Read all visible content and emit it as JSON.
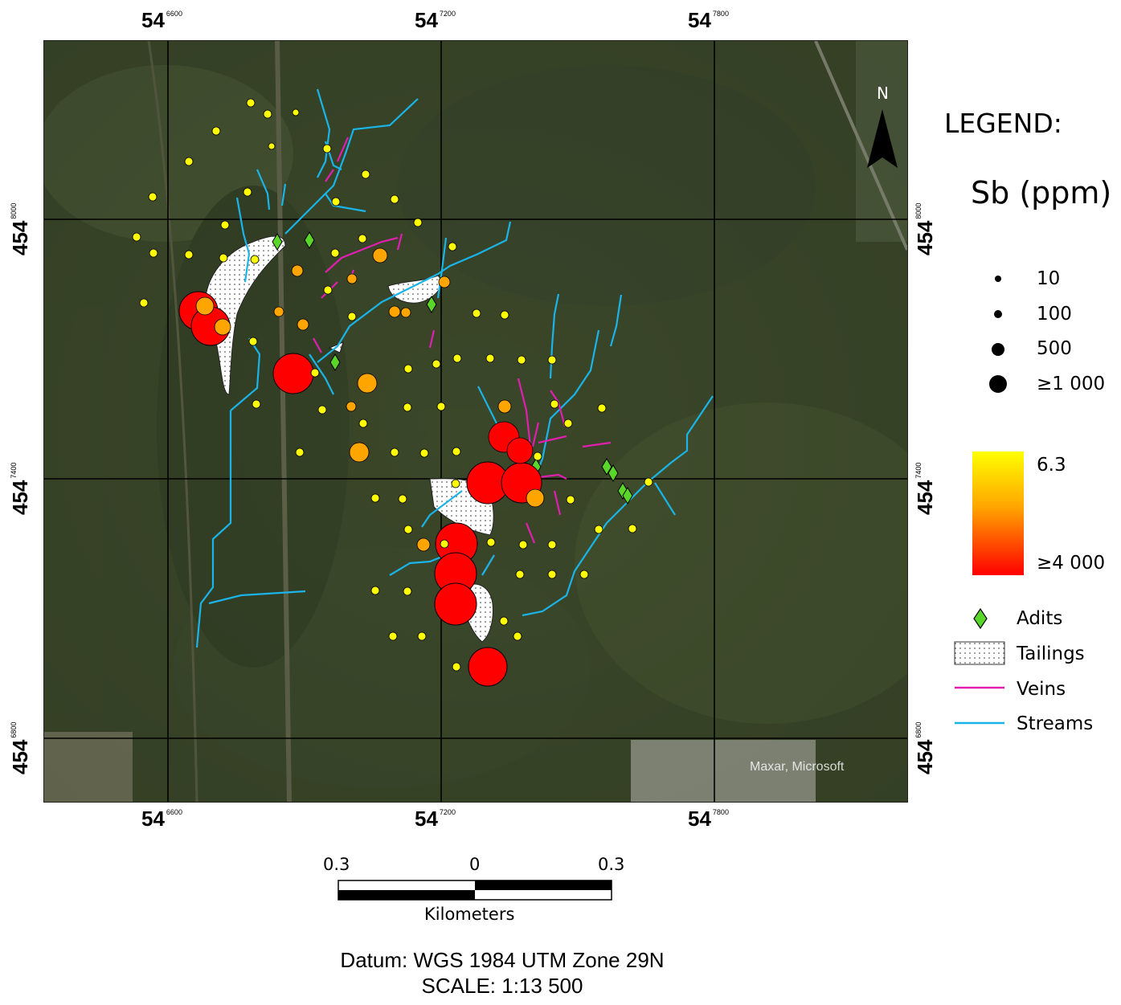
{
  "grid": {
    "x_labels": [
      {
        "main": "54",
        "sup": "6600"
      },
      {
        "main": "54",
        "sup": "7200"
      },
      {
        "main": "54",
        "sup": "7800"
      }
    ],
    "y_labels": [
      {
        "main": "454",
        "sup": "8000"
      },
      {
        "main": "454",
        "sup": "7400"
      },
      {
        "main": "454",
        "sup": "6800"
      }
    ]
  },
  "map": {
    "attribution": "Maxar, Microsoft",
    "north_label": "N"
  },
  "legend": {
    "title": "LEGEND:",
    "variable": "Sb (ppm)",
    "sizes": [
      "10",
      "100",
      "500",
      "≥1 000"
    ],
    "ramp_top": "6.3",
    "ramp_bottom": "≥4 000",
    "items": {
      "adits": "Adits",
      "tailings": "Tailings",
      "veins": "Veins",
      "streams": "Streams"
    }
  },
  "scalebar": {
    "left": "0.3",
    "mid": "0",
    "right": "0.3",
    "unit": "Kilometers"
  },
  "footer": {
    "datum": "Datum: WGS 1984 UTM Zone 29N",
    "scale": "SCALE: 1:13 500"
  },
  "colors": {
    "stream": "#1ab4e8",
    "vein": "#e01fb0",
    "adit": "#5ad52a",
    "low": "#ffff00",
    "mid": "#ffa500",
    "high": "#ff0000"
  }
}
